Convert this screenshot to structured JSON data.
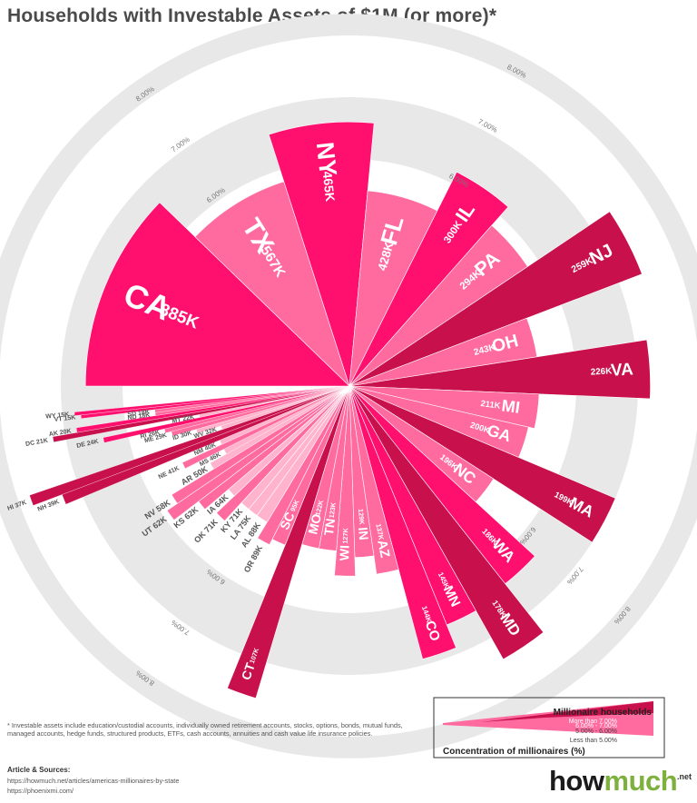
{
  "title": "Households with Investable Assets of $1M (or more)*",
  "footnote": "* Investable assets include education/custodial accounts, individually owned retirement accounts, stocks, options, bonds, mutual funds, managed accounts, hedge funds, structured products, ETFs, cash accounts, annuities and cash value life insurance policies.",
  "sources": {
    "heading": "Article & Sources:",
    "links": [
      "https://howmuch.net/articles/americas-millionaires-by-state",
      "https://phoenixmi.com/"
    ]
  },
  "logo": {
    "how": "how",
    "much": "much",
    "net": ".net"
  },
  "legend": {
    "title": "Millionaire households",
    "axis_label": "Concentration of millionaires (%)",
    "bands": [
      "Less than 5.00%",
      "5.00% - 6.00%",
      "6.00% - 7.00%",
      "More than 7.00%"
    ]
  },
  "ring_labels": [
    "6.00%",
    "7.00%",
    "8.00%"
  ],
  "colors": {
    "more_than_7": "#c8104c",
    "6_to_7": "#ff0f6e",
    "5_to_6": "#ff6a9f",
    "less_than_5": "#ffb3cc",
    "ring": "#e8e8e8"
  },
  "chart_data": {
    "type": "radial-bar",
    "title": "Households with Investable Assets of $1M (or more)*",
    "unit": "households",
    "categories": [
      "CA",
      "TX",
      "NY",
      "FL",
      "IL",
      "PA",
      "NJ",
      "OH",
      "VA",
      "MI",
      "GA",
      "MA",
      "NC",
      "WA",
      "MD",
      "MN",
      "CO",
      "AZ",
      "IN",
      "WI",
      "TN",
      "MO",
      "CT",
      "SC",
      "OR",
      "AL",
      "LA",
      "KY",
      "OK",
      "IA",
      "KS",
      "UT",
      "NV",
      "AR",
      "MS",
      "NE",
      "NM",
      "NH",
      "HI",
      "WV",
      "ID",
      "ME",
      "RI",
      "DE",
      "MT",
      "DC",
      "AK",
      "ND",
      "SD",
      "VT",
      "WY"
    ],
    "values": [
      885,
      567,
      465,
      428,
      300,
      294,
      259,
      243,
      226,
      211,
      200,
      199,
      196,
      186,
      178,
      145,
      144,
      137,
      129,
      127,
      123,
      122,
      107,
      95,
      89,
      88,
      75,
      71,
      71,
      64,
      62,
      62,
      58,
      50,
      46,
      41,
      40,
      39,
      37,
      32,
      30,
      29,
      26,
      24,
      22,
      21,
      20,
      18,
      18,
      15,
      15
    ],
    "value_labels": [
      "885K",
      "567K",
      "465K",
      "428K",
      "300K",
      "294K",
      "259K",
      "243K",
      "226K",
      "211K",
      "200K",
      "199K",
      "196K",
      "186K",
      "178K",
      "145K",
      "144K",
      "137K",
      "129K",
      "127K",
      "123K",
      "122K",
      "107K",
      "95K",
      "89K",
      "88K",
      "75K",
      "71K",
      "71K",
      "64K",
      "62K",
      "62K",
      "58K",
      "50K",
      "46K",
      "41K",
      "40K",
      "39K",
      "37K",
      "32K",
      "30K",
      "29K",
      "26K",
      "24K",
      "22K",
      "21K",
      "20K",
      "18K",
      "18K",
      "15K",
      "15K"
    ],
    "concentration_pct": [
      6.6,
      5.8,
      6.6,
      5.5,
      6.2,
      5.8,
      7.4,
      5.4,
      7.2,
      5.4,
      5.3,
      7.0,
      5.1,
      6.4,
      7.4,
      6.5,
      6.9,
      5.4,
      5.1,
      5.4,
      5.0,
      5.0,
      7.6,
      5.1,
      5.2,
      4.9,
      4.9,
      4.9,
      5.3,
      4.9,
      5.4,
      5.9,
      5.7,
      4.9,
      4.6,
      5.3,
      4.6,
      7.3,
      7.8,
      4.5,
      4.9,
      5.3,
      5.4,
      6.4,
      4.8,
      7.2,
      6.8,
      5.5,
      5.5,
      6.7,
      6.8
    ],
    "rings_pct": [
      6.0,
      7.0,
      8.0
    ]
  }
}
